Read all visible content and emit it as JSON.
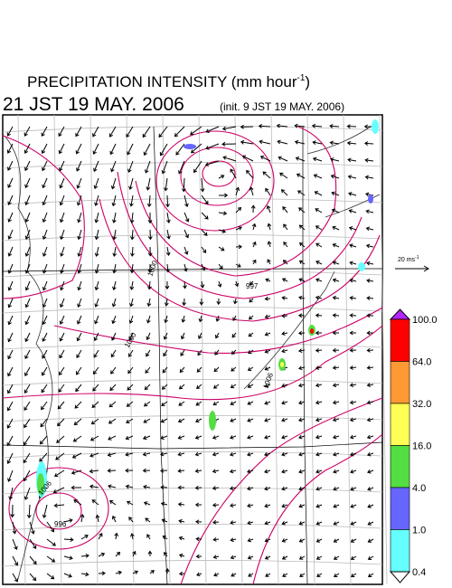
{
  "header": {
    "title": {
      "main": "PRECIPITATION INTENSITY (mm hour",
      "sup": "-1",
      "close": ")"
    },
    "valid_time": "21 JST 19 MAY. 2006",
    "init_time": "(init. 9 JST 19 MAY. 2006)"
  },
  "wind_scale": {
    "main": "20 ms",
    "sup": "-1"
  },
  "isobar_labels": [
    "997",
    "1000",
    "1006",
    "1000",
    "1006",
    "996"
  ],
  "colorbar": {
    "levels": [
      {
        "value": 100,
        "label": "100.0"
      },
      {
        "value": 64,
        "label": "64.0"
      },
      {
        "value": 32,
        "label": "32.0"
      },
      {
        "value": 16,
        "label": "16.0"
      },
      {
        "value": 4,
        "label": "4.0"
      },
      {
        "value": 1,
        "label": "1.0"
      },
      0.4
    ],
    "colors": [
      "#ff0000",
      "#ff9933",
      "#ffff55",
      "#55dd44",
      "#6666ff",
      "#66ffff"
    ],
    "over_color": "#b026ff",
    "under_color": "#ffffff"
  }
}
